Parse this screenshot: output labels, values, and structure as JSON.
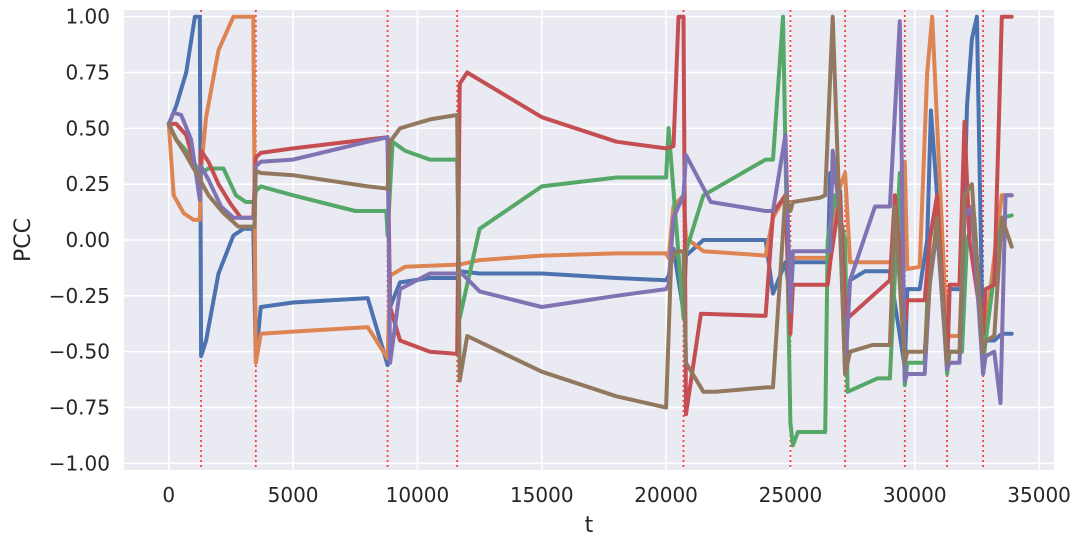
{
  "chart_data": {
    "type": "line",
    "title": "",
    "xlabel": "t",
    "ylabel": "PCC",
    "xlim": [
      -1800,
      35600
    ],
    "ylim": [
      -1.0,
      1.0
    ],
    "grid": true,
    "xticks": [
      0,
      5000,
      10000,
      15000,
      20000,
      25000,
      30000,
      35000
    ],
    "xtick_labels": [
      "0",
      "5000",
      "10000",
      "15000",
      "20000",
      "25000",
      "30000",
      "35000"
    ],
    "yticks": [
      1.0,
      0.75,
      0.5,
      0.25,
      0.0,
      -0.25,
      -0.5,
      -0.75,
      -1.0
    ],
    "ytick_labels": [
      "1.00",
      "0.75",
      "0.50",
      "0.25",
      "0.00",
      "−0.25",
      "−0.50",
      "−0.75",
      "−1.00"
    ],
    "regime_changes": [
      1300,
      3500,
      8800,
      11600,
      20700,
      25000,
      27200,
      29600,
      31300,
      32750
    ],
    "series": [
      {
        "color": "#4c72b0",
        "x": [
          0,
          300,
          700,
          1050,
          1250,
          1300,
          1500,
          2000,
          2600,
          3000,
          3400,
          3500,
          3700,
          5000,
          8000,
          8800,
          8900,
          9300,
          10500,
          11600,
          11700,
          12500,
          15000,
          18000,
          20000,
          20100,
          20300,
          20700,
          20800,
          21500,
          24000,
          24300,
          24800,
          25000,
          25100,
          25400,
          26500,
          26600,
          27000,
          27200,
          27400,
          28000,
          29000,
          29600,
          29700,
          30200,
          30500,
          30650,
          30900,
          31300,
          31400,
          31900,
          32100,
          32300,
          32500,
          32750,
          32850,
          33200,
          33500,
          33900
        ],
        "y": [
          0.52,
          0.6,
          0.75,
          1.0,
          1.0,
          -0.52,
          -0.45,
          -0.15,
          0.02,
          0.05,
          0.05,
          -0.53,
          -0.3,
          -0.28,
          -0.26,
          -0.56,
          -0.3,
          -0.19,
          -0.17,
          -0.17,
          -0.14,
          -0.15,
          -0.15,
          -0.17,
          -0.18,
          -0.16,
          -0.04,
          -0.32,
          -0.07,
          0.0,
          0.0,
          -0.24,
          -0.1,
          -0.27,
          -0.1,
          -0.1,
          -0.1,
          0.3,
          0.22,
          -0.4,
          -0.18,
          -0.14,
          -0.14,
          -0.57,
          -0.22,
          -0.22,
          0.0,
          0.58,
          0.2,
          -0.58,
          -0.22,
          -0.22,
          0.6,
          0.9,
          1.0,
          -0.55,
          -0.45,
          -0.45,
          -0.42,
          -0.42
        ]
      },
      {
        "color": "#dd8452",
        "x": [
          0,
          200,
          600,
          1000,
          1250,
          1300,
          1500,
          2000,
          2600,
          3000,
          3400,
          3500,
          3700,
          5000,
          8000,
          8800,
          8900,
          9500,
          11600,
          11700,
          12500,
          15000,
          18000,
          20000,
          20100,
          20300,
          20700,
          20800,
          21500,
          24000,
          24300,
          24800,
          25000,
          25100,
          26500,
          26800,
          27200,
          27400,
          29000,
          29200,
          29600,
          29700,
          30200,
          30500,
          30700,
          31300,
          31400,
          31800,
          32000,
          32300,
          32750,
          32850,
          33500,
          33900
        ],
        "y": [
          0.52,
          0.2,
          0.12,
          0.09,
          0.09,
          0.32,
          0.55,
          0.85,
          1.0,
          1.0,
          1.0,
          -0.55,
          -0.42,
          -0.41,
          -0.39,
          -0.53,
          -0.16,
          -0.12,
          -0.11,
          -0.11,
          -0.09,
          -0.07,
          -0.06,
          -0.06,
          -0.08,
          0.15,
          0.2,
          0.01,
          -0.05,
          -0.07,
          0.1,
          0.2,
          -0.15,
          -0.08,
          -0.08,
          0.18,
          0.3,
          -0.1,
          -0.1,
          -0.1,
          0.35,
          -0.13,
          -0.12,
          0.75,
          1.0,
          -0.45,
          -0.43,
          -0.43,
          0.1,
          0.1,
          -0.45,
          -0.4,
          0.2,
          0.2
        ]
      },
      {
        "color": "#55a868",
        "x": [
          0,
          300,
          700,
          1100,
          1250,
          1300,
          1600,
          2200,
          2700,
          3100,
          3450,
          3500,
          3700,
          5000,
          7500,
          8750,
          8800,
          9000,
          9500,
          10500,
          11600,
          11700,
          12500,
          15000,
          18000,
          20000,
          20100,
          20700,
          20800,
          21500,
          24000,
          24300,
          24700,
          25000,
          25100,
          25300,
          26400,
          26500,
          26800,
          27200,
          27300,
          28500,
          29000,
          29400,
          29600,
          29700,
          30400,
          30600,
          30900,
          31300,
          31400,
          31900,
          32100,
          32400,
          32750,
          32850,
          33500,
          33900
        ],
        "y": [
          0.52,
          0.45,
          0.4,
          0.33,
          0.31,
          0.3,
          0.32,
          0.32,
          0.2,
          0.17,
          0.17,
          0.22,
          0.24,
          0.2,
          0.13,
          0.13,
          0.02,
          0.44,
          0.4,
          0.36,
          0.36,
          -0.35,
          0.05,
          0.24,
          0.28,
          0.28,
          0.5,
          -0.35,
          -0.05,
          0.2,
          0.36,
          0.36,
          1.0,
          -0.82,
          -0.92,
          -0.86,
          -0.86,
          0.0,
          0.2,
          0.0,
          -0.68,
          -0.62,
          -0.62,
          0.3,
          -0.65,
          -0.55,
          -0.55,
          0.0,
          0.18,
          -0.6,
          -0.5,
          -0.5,
          0.0,
          0.1,
          -0.55,
          -0.45,
          0.1,
          0.11
        ]
      },
      {
        "color": "#c44e52",
        "x": [
          0,
          300,
          700,
          1000,
          1250,
          1300,
          1600,
          2000,
          2500,
          2900,
          3400,
          3500,
          3700,
          5000,
          8000,
          8800,
          8900,
          9300,
          10500,
          11600,
          11700,
          12000,
          15000,
          18000,
          20000,
          20300,
          20500,
          20700,
          20800,
          21400,
          24000,
          24300,
          24800,
          25000,
          25100,
          25300,
          26500,
          26600,
          27000,
          27200,
          27300,
          29000,
          29200,
          29600,
          29700,
          30400,
          30600,
          30900,
          31300,
          31400,
          31800,
          32000,
          32200,
          32750,
          32850,
          33200,
          33500,
          33900
        ],
        "y": [
          0.52,
          0.52,
          0.47,
          0.35,
          0.22,
          0.4,
          0.35,
          0.25,
          0.16,
          0.1,
          0.1,
          0.37,
          0.39,
          0.41,
          0.45,
          0.46,
          -0.3,
          -0.45,
          -0.5,
          -0.51,
          0.7,
          0.75,
          0.55,
          0.44,
          0.41,
          0.42,
          1.0,
          1.0,
          -0.78,
          -0.33,
          -0.34,
          0.12,
          0.2,
          -0.42,
          -0.2,
          -0.2,
          -0.2,
          -0.1,
          0.2,
          -0.3,
          -0.35,
          -0.18,
          0.2,
          -0.38,
          -0.27,
          -0.27,
          0.0,
          0.2,
          -0.55,
          -0.2,
          -0.2,
          0.53,
          0.0,
          -0.42,
          -0.22,
          -0.2,
          1.0,
          1.0
        ]
      },
      {
        "color": "#8172b3",
        "x": [
          0,
          200,
          500,
          900,
          1250,
          1300,
          1600,
          2100,
          2600,
          3000,
          3450,
          3500,
          3700,
          5000,
          8000,
          8800,
          8900,
          9300,
          10500,
          11600,
          11700,
          12500,
          15000,
          18000,
          20000,
          20100,
          20300,
          20700,
          20800,
          21800,
          24000,
          24300,
          24800,
          25000,
          25100,
          25400,
          26600,
          26700,
          27000,
          27200,
          27400,
          28400,
          29000,
          29400,
          29600,
          29700,
          30400,
          30600,
          30900,
          31300,
          31400,
          31800,
          32000,
          32300,
          32750,
          32850,
          33200,
          33450,
          33650,
          33900
        ],
        "y": [
          0.52,
          0.57,
          0.56,
          0.45,
          0.18,
          0.33,
          0.27,
          0.15,
          0.1,
          0.1,
          0.1,
          0.33,
          0.35,
          0.36,
          0.44,
          0.46,
          -0.55,
          -0.22,
          -0.15,
          -0.15,
          -0.14,
          -0.23,
          -0.3,
          -0.25,
          -0.22,
          -0.2,
          0.1,
          0.2,
          0.38,
          0.17,
          0.13,
          0.13,
          0.47,
          -0.32,
          -0.05,
          -0.05,
          -0.05,
          0.4,
          0.1,
          -0.6,
          -0.18,
          0.15,
          0.15,
          0.98,
          -0.63,
          -0.6,
          -0.6,
          -0.2,
          0.05,
          -0.58,
          -0.55,
          -0.55,
          0.1,
          0.15,
          -0.6,
          -0.52,
          -0.5,
          -0.73,
          0.2,
          0.2
        ]
      },
      {
        "color": "#937860",
        "x": [
          0,
          300,
          700,
          1000,
          1250,
          1300,
          1600,
          2200,
          2800,
          3200,
          3450,
          3500,
          3700,
          5000,
          8000,
          8800,
          8900,
          9300,
          10500,
          11600,
          11700,
          12000,
          15000,
          18000,
          20000,
          20200,
          20400,
          20700,
          20800,
          21500,
          22000,
          24000,
          24300,
          24800,
          25000,
          25100,
          26200,
          26400,
          26700,
          27200,
          27400,
          28300,
          29000,
          29200,
          29600,
          29700,
          30400,
          30600,
          30900,
          31300,
          31400,
          31800,
          32000,
          32300,
          32750,
          32850,
          33200,
          33500,
          33900
        ],
        "y": [
          0.52,
          0.45,
          0.38,
          0.32,
          0.28,
          0.26,
          0.2,
          0.12,
          0.06,
          0.06,
          0.06,
          0.31,
          0.3,
          0.29,
          0.24,
          0.23,
          0.44,
          0.5,
          0.54,
          0.56,
          -0.63,
          -0.43,
          -0.59,
          -0.7,
          -0.75,
          -0.1,
          -0.05,
          -0.05,
          -0.55,
          -0.68,
          -0.68,
          -0.66,
          -0.66,
          0.2,
          0.13,
          0.17,
          0.19,
          0.2,
          1.0,
          -0.6,
          -0.5,
          -0.47,
          -0.47,
          0.15,
          -0.55,
          -0.5,
          -0.5,
          -0.2,
          0.1,
          -0.55,
          -0.5,
          -0.5,
          0.2,
          0.25,
          -0.5,
          -0.45,
          -0.43,
          0.1,
          -0.03
        ]
      }
    ]
  }
}
